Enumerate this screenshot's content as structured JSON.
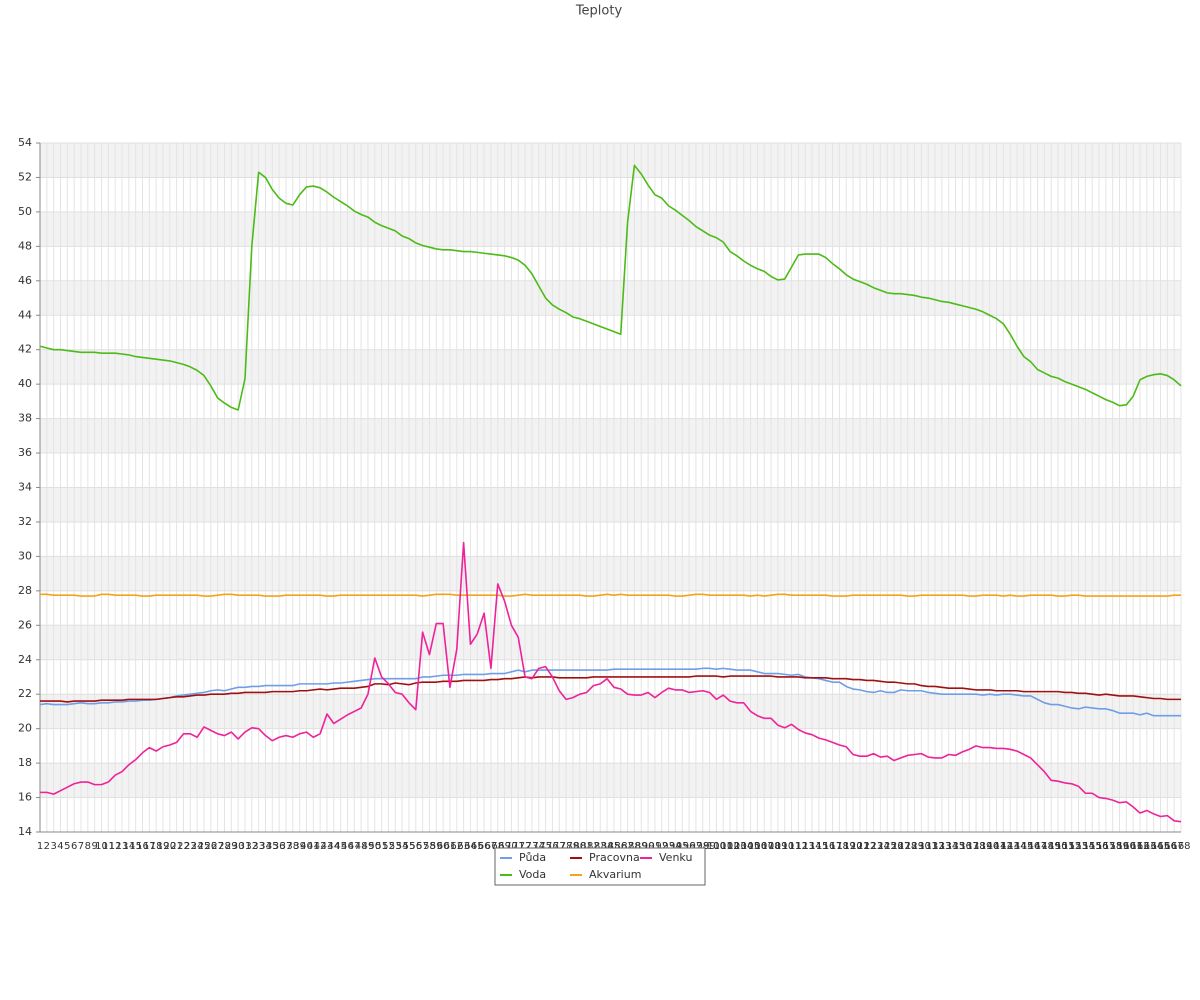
{
  "chart_data": {
    "type": "line",
    "title": "Teploty",
    "categories": [
      "1",
      "2",
      "3",
      "4",
      "5",
      "6",
      "7",
      "8",
      "9",
      "10",
      "11",
      "12",
      "13",
      "14",
      "15",
      "16",
      "17",
      "18",
      "19",
      "20",
      "21",
      "22",
      "23",
      "24",
      "25",
      "26",
      "27",
      "28",
      "29",
      "30",
      "31",
      "32",
      "33",
      "34",
      "35",
      "36",
      "37",
      "38",
      "39",
      "40",
      "41",
      "42",
      "43",
      "44",
      "45",
      "46",
      "47",
      "48",
      "49",
      "50",
      "51",
      "52",
      "53",
      "54",
      "55",
      "56",
      "57",
      "58",
      "59",
      "60",
      "61",
      "62",
      "63",
      "64",
      "65",
      "66",
      "67",
      "68",
      "69",
      "70",
      "71",
      "72",
      "73",
      "74",
      "75",
      "76",
      "77",
      "78",
      "79",
      "80",
      "81",
      "82",
      "83",
      "84",
      "85",
      "86",
      "87",
      "88",
      "89",
      "90",
      "91",
      "92",
      "93",
      "94",
      "95",
      "96",
      "97",
      "98",
      "99",
      "100",
      "101",
      "102",
      "103",
      "104",
      "105",
      "106",
      "107",
      "108",
      "109",
      "110",
      "111",
      "112",
      "113",
      "114",
      "115",
      "116",
      "117",
      "118",
      "119",
      "120",
      "121",
      "122",
      "123",
      "124",
      "125",
      "126",
      "127",
      "128",
      "129",
      "130",
      "131",
      "132",
      "133",
      "134",
      "135",
      "136",
      "137",
      "138",
      "139",
      "140",
      "141",
      "142",
      "143",
      "144",
      "145",
      "146",
      "147",
      "148",
      "149",
      "150",
      "151",
      "152",
      "153",
      "154",
      "155",
      "156",
      "157",
      "158",
      "159",
      "160",
      "161",
      "162",
      "163",
      "164",
      "165",
      "166",
      "167",
      "168"
    ],
    "series": [
      {
        "name": "Půda",
        "color": "#6f9ee8",
        "values": [
          21.4,
          21.45,
          21.4,
          21.4,
          21.4,
          21.45,
          21.5,
          21.45,
          21.45,
          21.5,
          21.5,
          21.55,
          21.55,
          21.6,
          21.6,
          21.65,
          21.65,
          21.7,
          21.75,
          21.8,
          21.9,
          21.95,
          22.0,
          22.05,
          22.1,
          22.2,
          22.25,
          22.2,
          22.3,
          22.4,
          22.4,
          22.45,
          22.45,
          22.5,
          22.5,
          22.5,
          22.5,
          22.5,
          22.6,
          22.6,
          22.6,
          22.6,
          22.6,
          22.65,
          22.65,
          22.7,
          22.75,
          22.8,
          22.85,
          22.9,
          22.9,
          22.9,
          22.9,
          22.9,
          22.9,
          22.9,
          23.0,
          23.0,
          23.05,
          23.1,
          23.1,
          23.1,
          23.15,
          23.15,
          23.15,
          23.15,
          23.2,
          23.2,
          23.2,
          23.3,
          23.4,
          23.3,
          23.4,
          23.4,
          23.4,
          23.4,
          23.4,
          23.4,
          23.4,
          23.4,
          23.4,
          23.4,
          23.4,
          23.4,
          23.45,
          23.45,
          23.45,
          23.45,
          23.45,
          23.45,
          23.45,
          23.45,
          23.45,
          23.45,
          23.45,
          23.45,
          23.45,
          23.5,
          23.5,
          23.45,
          23.5,
          23.45,
          23.4,
          23.4,
          23.4,
          23.3,
          23.2,
          23.2,
          23.2,
          23.15,
          23.1,
          23.15,
          23.0,
          22.95,
          22.9,
          22.8,
          22.7,
          22.7,
          22.45,
          22.3,
          22.25,
          22.15,
          22.1,
          22.2,
          22.1,
          22.1,
          22.25,
          22.2,
          22.2,
          22.2,
          22.1,
          22.05,
          22.0,
          22.0,
          22.0,
          22.0,
          22.0,
          22.0,
          21.95,
          22.0,
          21.95,
          22.0,
          22.0,
          21.95,
          21.9,
          21.9,
          21.7,
          21.5,
          21.4,
          21.4,
          21.3,
          21.2,
          21.15,
          21.25,
          21.2,
          21.15,
          21.15,
          21.05,
          20.9,
          20.9,
          20.9,
          20.8,
          20.9,
          20.75,
          20.75,
          20.75,
          20.75,
          20.75
        ]
      },
      {
        "name": "Voda",
        "color": "#4cbb17",
        "values": [
          42.2,
          42.1,
          42.0,
          42.0,
          41.95,
          41.9,
          41.85,
          41.85,
          41.85,
          41.8,
          41.8,
          41.8,
          41.75,
          41.7,
          41.6,
          41.55,
          41.5,
          41.45,
          41.4,
          41.35,
          41.25,
          41.15,
          41.0,
          40.8,
          40.5,
          39.9,
          39.2,
          38.9,
          38.65,
          38.5,
          40.3,
          48.0,
          52.3,
          52.0,
          51.3,
          50.8,
          50.5,
          50.4,
          51.0,
          51.45,
          51.5,
          51.4,
          51.15,
          50.85,
          50.6,
          50.35,
          50.05,
          49.85,
          49.7,
          49.4,
          49.2,
          49.05,
          48.9,
          48.6,
          48.45,
          48.2,
          48.05,
          47.95,
          47.85,
          47.8,
          47.8,
          47.75,
          47.7,
          47.7,
          47.65,
          47.6,
          47.55,
          47.5,
          47.45,
          47.35,
          47.2,
          46.9,
          46.4,
          45.7,
          45.0,
          44.6,
          44.35,
          44.15,
          43.9,
          43.8,
          43.65,
          43.5,
          43.35,
          43.2,
          43.05,
          42.9,
          49.4,
          52.7,
          52.2,
          51.55,
          51.0,
          50.8,
          50.35,
          50.1,
          49.8,
          49.5,
          49.15,
          48.9,
          48.65,
          48.5,
          48.25,
          47.7,
          47.45,
          47.15,
          46.9,
          46.7,
          46.55,
          46.25,
          46.05,
          46.1,
          46.8,
          47.5,
          47.55,
          47.55,
          47.55,
          47.35,
          47.0,
          46.7,
          46.35,
          46.1,
          45.95,
          45.8,
          45.6,
          45.45,
          45.3,
          45.25,
          45.25,
          45.2,
          45.15,
          45.05,
          45.0,
          44.9,
          44.8,
          44.75,
          44.65,
          44.55,
          44.45,
          44.35,
          44.2,
          44.0,
          43.8,
          43.5,
          42.9,
          42.2,
          41.6,
          41.3,
          40.85,
          40.65,
          40.45,
          40.35,
          40.15,
          40.0,
          39.85,
          39.7,
          39.5,
          39.3,
          39.1,
          38.95,
          38.75,
          38.8,
          39.3,
          40.25,
          40.45,
          40.55,
          40.6,
          40.5,
          40.25,
          39.9
        ]
      },
      {
        "name": "Pracovna",
        "color": "#a01010",
        "values": [
          21.6,
          21.6,
          21.6,
          21.6,
          21.55,
          21.6,
          21.6,
          21.6,
          21.6,
          21.65,
          21.65,
          21.65,
          21.65,
          21.7,
          21.7,
          21.7,
          21.7,
          21.7,
          21.75,
          21.8,
          21.85,
          21.85,
          21.9,
          21.95,
          21.95,
          22.0,
          22.0,
          22.0,
          22.05,
          22.05,
          22.1,
          22.1,
          22.1,
          22.1,
          22.15,
          22.15,
          22.15,
          22.15,
          22.2,
          22.2,
          22.25,
          22.3,
          22.25,
          22.3,
          22.35,
          22.35,
          22.35,
          22.4,
          22.45,
          22.6,
          22.6,
          22.55,
          22.65,
          22.6,
          22.55,
          22.65,
          22.7,
          22.7,
          22.7,
          22.75,
          22.75,
          22.75,
          22.8,
          22.8,
          22.8,
          22.8,
          22.85,
          22.85,
          22.9,
          22.9,
          22.95,
          23.0,
          22.95,
          23.0,
          23.0,
          23.0,
          22.95,
          22.95,
          22.95,
          22.95,
          22.95,
          23.0,
          23.0,
          23.0,
          23.0,
          23.0,
          23.0,
          23.0,
          23.0,
          23.0,
          23.0,
          23.0,
          23.0,
          23.0,
          23.0,
          23.0,
          23.05,
          23.05,
          23.05,
          23.05,
          23.0,
          23.05,
          23.05,
          23.05,
          23.05,
          23.05,
          23.05,
          23.05,
          23.0,
          23.0,
          23.0,
          23.0,
          22.95,
          22.95,
          22.95,
          22.95,
          22.9,
          22.9,
          22.9,
          22.85,
          22.85,
          22.8,
          22.8,
          22.75,
          22.7,
          22.7,
          22.65,
          22.6,
          22.6,
          22.5,
          22.45,
          22.45,
          22.4,
          22.35,
          22.35,
          22.35,
          22.3,
          22.25,
          22.25,
          22.25,
          22.2,
          22.2,
          22.2,
          22.2,
          22.15,
          22.15,
          22.15,
          22.15,
          22.15,
          22.15,
          22.1,
          22.1,
          22.05,
          22.05,
          22.0,
          21.95,
          22.0,
          21.95,
          21.9,
          21.9,
          21.9,
          21.85,
          21.8,
          21.75,
          21.75,
          21.7,
          21.7,
          21.7
        ]
      },
      {
        "name": "Akvarium",
        "color": "#f5a21b",
        "values": [
          27.8,
          27.8,
          27.75,
          27.75,
          27.75,
          27.75,
          27.7,
          27.7,
          27.7,
          27.8,
          27.8,
          27.75,
          27.75,
          27.75,
          27.75,
          27.7,
          27.7,
          27.75,
          27.75,
          27.75,
          27.75,
          27.75,
          27.75,
          27.75,
          27.7,
          27.7,
          27.75,
          27.8,
          27.8,
          27.75,
          27.75,
          27.75,
          27.75,
          27.7,
          27.7,
          27.7,
          27.75,
          27.75,
          27.75,
          27.75,
          27.75,
          27.75,
          27.7,
          27.7,
          27.75,
          27.75,
          27.75,
          27.75,
          27.75,
          27.75,
          27.75,
          27.75,
          27.75,
          27.75,
          27.75,
          27.75,
          27.7,
          27.75,
          27.8,
          27.8,
          27.8,
          27.75,
          27.75,
          27.75,
          27.75,
          27.75,
          27.75,
          27.75,
          27.7,
          27.7,
          27.75,
          27.8,
          27.75,
          27.75,
          27.75,
          27.75,
          27.75,
          27.75,
          27.75,
          27.75,
          27.7,
          27.7,
          27.75,
          27.8,
          27.75,
          27.8,
          27.75,
          27.75,
          27.75,
          27.75,
          27.75,
          27.75,
          27.75,
          27.7,
          27.7,
          27.75,
          27.8,
          27.8,
          27.75,
          27.75,
          27.75,
          27.75,
          27.75,
          27.75,
          27.7,
          27.75,
          27.7,
          27.75,
          27.8,
          27.8,
          27.75,
          27.75,
          27.75,
          27.75,
          27.75,
          27.75,
          27.7,
          27.7,
          27.7,
          27.75,
          27.75,
          27.75,
          27.75,
          27.75,
          27.75,
          27.75,
          27.75,
          27.7,
          27.7,
          27.75,
          27.75,
          27.75,
          27.75,
          27.75,
          27.75,
          27.75,
          27.7,
          27.7,
          27.75,
          27.75,
          27.75,
          27.7,
          27.75,
          27.7,
          27.7,
          27.75,
          27.75,
          27.75,
          27.75,
          27.7,
          27.7,
          27.75,
          27.75,
          27.7,
          27.7,
          27.7,
          27.7,
          27.7,
          27.7,
          27.7,
          27.7,
          27.7,
          27.7,
          27.7,
          27.7,
          27.7,
          27.75,
          27.75
        ]
      },
      {
        "name": "Venku",
        "color": "#ee2299",
        "values": [
          16.3,
          16.3,
          16.2,
          16.4,
          16.6,
          16.8,
          16.9,
          16.9,
          16.75,
          16.75,
          16.9,
          17.3,
          17.5,
          17.9,
          18.2,
          18.6,
          18.9,
          18.7,
          18.95,
          19.05,
          19.2,
          19.7,
          19.7,
          19.5,
          20.1,
          19.9,
          19.7,
          19.6,
          19.8,
          19.4,
          19.8,
          20.05,
          20.0,
          19.6,
          19.3,
          19.5,
          19.6,
          19.5,
          19.7,
          19.8,
          19.5,
          19.7,
          20.85,
          20.3,
          20.55,
          20.8,
          21.0,
          21.2,
          22.0,
          24.1,
          23.0,
          22.6,
          22.1,
          22.0,
          21.5,
          21.1,
          25.6,
          24.3,
          26.1,
          26.1,
          22.4,
          24.6,
          30.8,
          24.9,
          25.5,
          26.7,
          23.5,
          28.4,
          27.4,
          26.0,
          25.3,
          23.0,
          22.9,
          23.5,
          23.6,
          23.0,
          22.2,
          21.7,
          21.8,
          22.0,
          22.1,
          22.5,
          22.6,
          22.9,
          22.4,
          22.3,
          22.0,
          21.95,
          21.95,
          22.1,
          21.8,
          22.1,
          22.35,
          22.25,
          22.25,
          22.1,
          22.15,
          22.2,
          22.1,
          21.7,
          21.95,
          21.6,
          21.5,
          21.5,
          21.0,
          20.75,
          20.6,
          20.6,
          20.2,
          20.05,
          20.25,
          19.95,
          19.75,
          19.65,
          19.45,
          19.35,
          19.2,
          19.05,
          18.95,
          18.5,
          18.4,
          18.4,
          18.55,
          18.35,
          18.4,
          18.15,
          18.3,
          18.45,
          18.5,
          18.55,
          18.35,
          18.3,
          18.3,
          18.5,
          18.45,
          18.65,
          18.8,
          19.0,
          18.9,
          18.9,
          18.85,
          18.85,
          18.8,
          18.7,
          18.5,
          18.3,
          17.9,
          17.5,
          17.0,
          16.95,
          16.85,
          16.8,
          16.65,
          16.25,
          16.25,
          16.0,
          15.95,
          15.85,
          15.7,
          15.75,
          15.45,
          15.1,
          15.25,
          15.05,
          14.9,
          14.95,
          14.65,
          14.6
        ]
      }
    ],
    "ylim": [
      14,
      54
    ],
    "yticks": [
      14,
      16,
      18,
      20,
      22,
      24,
      26,
      28,
      30,
      32,
      34,
      36,
      38,
      40,
      42,
      44,
      46,
      48,
      50,
      52,
      54
    ],
    "grid": true,
    "legend": "bottom"
  }
}
